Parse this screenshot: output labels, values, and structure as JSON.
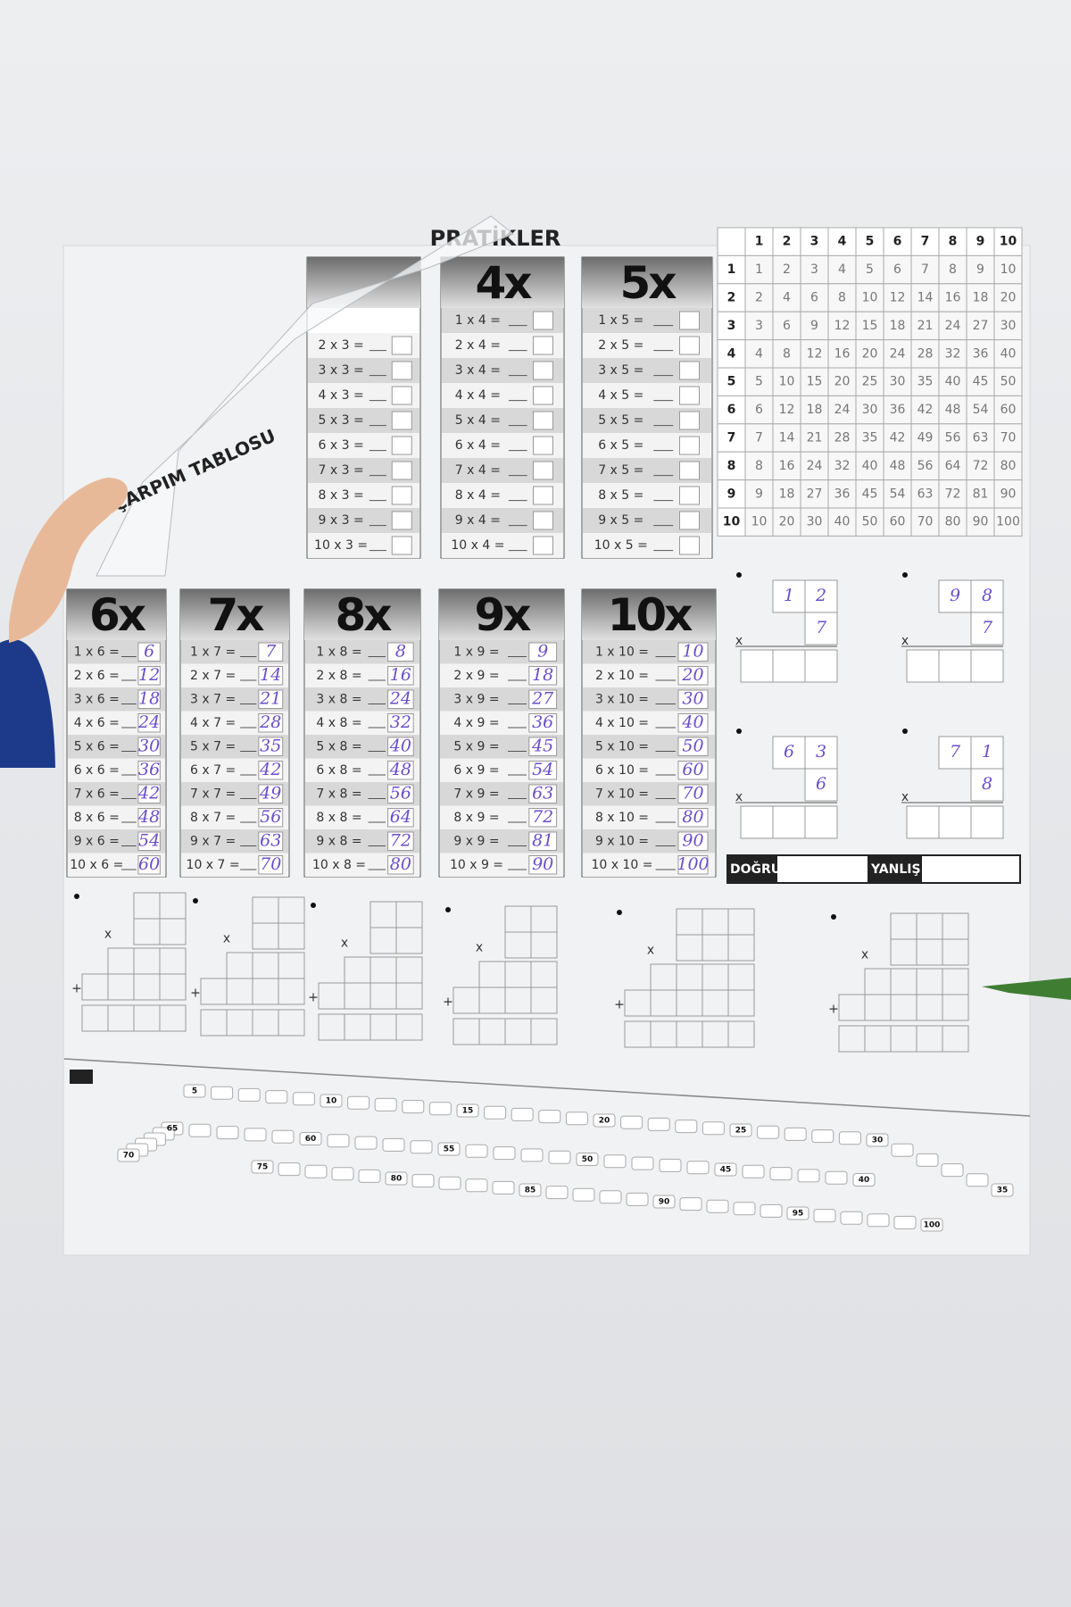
{
  "poster": {
    "title": "PRATİKLER",
    "peeled_label": "ÇARPIM TABLOSU",
    "tables": [
      {
        "rows": [
          "2 x 3 =",
          "3 x 3 =",
          "4 x 3 =",
          "5 x 3 =",
          "6 x 3 =",
          "7 x 3 =",
          "8 x 3 =",
          "9 x 3 =",
          "10 x 3 ="
        ]
      },
      {
        "header": "4x",
        "rows": [
          "1 x 4 =",
          "2 x 4 =",
          "3 x 4 =",
          "4 x 4 =",
          "5 x 4 =",
          "6 x 4 =",
          "7 x 4 =",
          "8 x 4 =",
          "9 x 4 =",
          "10 x 4 ="
        ]
      },
      {
        "header": "5x",
        "rows": [
          "1 x 5 =",
          "2 x 5 =",
          "3 x 5 =",
          "4 x 5 =",
          "5 x 5 =",
          "6 x 5 =",
          "7 x 5 =",
          "8 x 5 =",
          "9 x 5 =",
          "10 x 5 ="
        ]
      },
      {
        "header": "6x",
        "rows": [
          "1 x 6 =",
          "2 x 6 =",
          "3 x 6 =",
          "4 x 6 =",
          "5 x 6 =",
          "6 x 6 =",
          "7 x 6 =",
          "8 x 6 =",
          "9 x 6 =",
          "10 x 6 ="
        ],
        "answers": [
          6,
          12,
          18,
          24,
          30,
          36,
          42,
          48,
          54,
          60
        ]
      },
      {
        "header": "7x",
        "rows": [
          "1 x 7 =",
          "2 x 7 =",
          "3 x 7 =",
          "4 x 7 =",
          "5 x 7 =",
          "6 x 7 =",
          "7 x 7 =",
          "8 x 7 =",
          "9 x 7 =",
          "10 x 7 ="
        ],
        "answers": [
          7,
          14,
          21,
          28,
          35,
          42,
          49,
          56,
          63,
          70
        ]
      },
      {
        "header": "8x",
        "rows": [
          "1 x 8 =",
          "2 x 8 =",
          "3 x 8 =",
          "4 x 8 =",
          "5 x 8 =",
          "6 x 8 =",
          "7 x 8 =",
          "8 x 8 =",
          "9 x 8 =",
          "10 x 8 ="
        ],
        "answers": [
          8,
          16,
          24,
          32,
          40,
          48,
          56,
          64,
          72,
          80
        ]
      },
      {
        "header": "9x",
        "rows": [
          "1 x 9 =",
          "2 x 9 =",
          "3 x 9 =",
          "4 x 9 =",
          "5 x 9 =",
          "6 x 9 =",
          "7 x 9 =",
          "8 x 9 =",
          "9 x 9 =",
          "10 x 9 ="
        ],
        "answers": [
          9,
          18,
          27,
          36,
          45,
          54,
          63,
          72,
          81,
          90
        ]
      },
      {
        "header": "10x",
        "rows": [
          "1 x 10 =",
          "2 x 10 =",
          "3 x 10 =",
          "4 x 10 =",
          "5 x 10 =",
          "6 x 10 =",
          "7 x 10 =",
          "8 x 10 =",
          "9 x 10 =",
          "10 x 10 ="
        ],
        "answers": [
          10,
          20,
          30,
          40,
          50,
          60,
          70,
          80,
          90,
          100
        ]
      }
    ],
    "grid": {
      "header": [
        1,
        2,
        3,
        4,
        5,
        6,
        7,
        8,
        9,
        10
      ],
      "rows": [
        {
          "label": 1,
          "cells": [
            1,
            2,
            3,
            4,
            5,
            6,
            7,
            8,
            9,
            10
          ]
        },
        {
          "label": 2,
          "cells": [
            2,
            4,
            6,
            8,
            10,
            12,
            14,
            16,
            18,
            20
          ]
        },
        {
          "label": 3,
          "cells": [
            3,
            6,
            9,
            12,
            15,
            18,
            21,
            24,
            27,
            30
          ]
        },
        {
          "label": 4,
          "cells": [
            4,
            8,
            12,
            16,
            20,
            24,
            28,
            32,
            36,
            40
          ]
        },
        {
          "label": 5,
          "cells": [
            5,
            10,
            15,
            20,
            25,
            30,
            35,
            40,
            45,
            50
          ]
        },
        {
          "label": 6,
          "cells": [
            6,
            12,
            18,
            24,
            30,
            36,
            42,
            48,
            54,
            60
          ]
        },
        {
          "label": 7,
          "cells": [
            7,
            14,
            21,
            28,
            35,
            42,
            49,
            56,
            63,
            70
          ]
        },
        {
          "label": 8,
          "cells": [
            8,
            16,
            24,
            32,
            40,
            48,
            56,
            64,
            72,
            80
          ]
        },
        {
          "label": 9,
          "cells": [
            9,
            18,
            27,
            36,
            45,
            54,
            63,
            72,
            81,
            90
          ]
        },
        {
          "label": 10,
          "cells": [
            10,
            20,
            30,
            40,
            50,
            60,
            70,
            80,
            90,
            100
          ]
        }
      ]
    },
    "practice": [
      {
        "top": [
          "1",
          "2"
        ],
        "bottom": "7"
      },
      {
        "top": [
          "9",
          "8"
        ],
        "bottom": "7"
      },
      {
        "top": [
          "6",
          "3"
        ],
        "bottom": "6"
      },
      {
        "top": [
          "7",
          "1"
        ],
        "bottom": "8"
      }
    ],
    "signs": {
      "multiply": "x",
      "plus": "+"
    },
    "score": {
      "correct": "DOĞRU:",
      "wrong": "YANLIŞ:"
    },
    "train_numbers": [
      5,
      10,
      15,
      20,
      25,
      30,
      35,
      40,
      45,
      50,
      55,
      60,
      65,
      70,
      75,
      80,
      85,
      90,
      95,
      100
    ]
  }
}
